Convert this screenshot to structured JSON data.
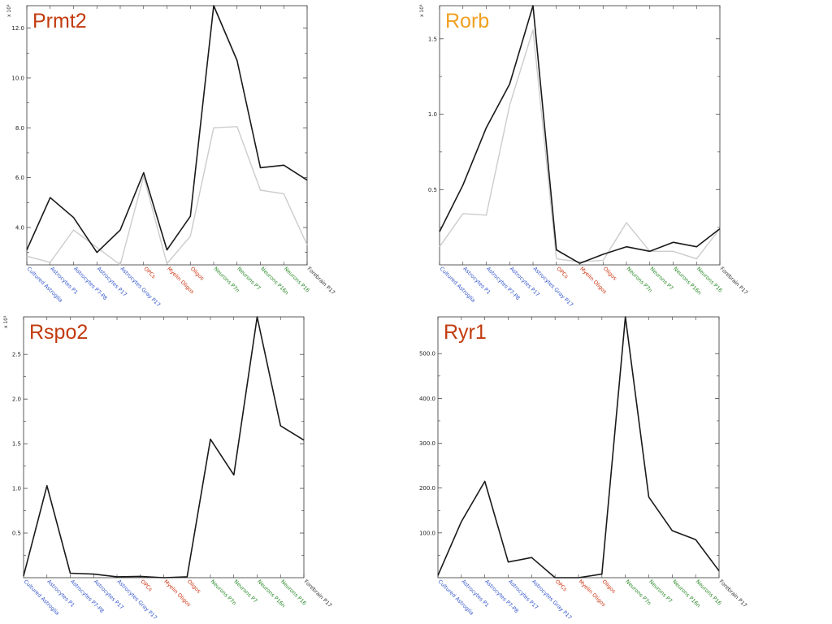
{
  "colors": {
    "astrocyte_label": "#3355cc",
    "oligo_label": "#cc3311",
    "neuron_label": "#2a8a2a",
    "forebrain_label": "#333333",
    "series_primary": "#1a1a1a",
    "series_secondary": "#cccccc",
    "title_red": "#c23b0e",
    "title_orange": "#f0a020"
  },
  "chart_data": [
    {
      "type": "line",
      "title": "Prmt2",
      "title_color": "#c23b0e",
      "multiplier": "x 10³",
      "categories": [
        {
          "label": "Cultured Astroglia",
          "group": "astro"
        },
        {
          "label": "Astrocytes P1",
          "group": "astro"
        },
        {
          "label": "Astrocytes P7-P8",
          "group": "astro"
        },
        {
          "label": "Astrocytes P17",
          "group": "astro"
        },
        {
          "label": "Astrocytes Gray P17",
          "group": "astro"
        },
        {
          "label": "OPCs",
          "group": "oligo"
        },
        {
          "label": "Myelin Oligos",
          "group": "oligo"
        },
        {
          "label": "Oligos",
          "group": "oligo"
        },
        {
          "label": "Neurons P7n",
          "group": "neuron"
        },
        {
          "label": "Neurons P7",
          "group": "neuron"
        },
        {
          "label": "Neurons P16n",
          "group": "neuron"
        },
        {
          "label": "Neurons P16",
          "group": "neuron"
        },
        {
          "label": "Forebrain P17",
          "group": "fore"
        }
      ],
      "yticks": [
        4.0,
        6.0,
        8.0,
        10.0,
        12.0
      ],
      "ytick_labels": [
        "4.0",
        "6.0",
        "8.0",
        "10.0",
        "12.0"
      ],
      "ylim": [
        2.5,
        12.9
      ],
      "series": [
        {
          "values": [
            3.1,
            5.2,
            4.4,
            3.0,
            3.9,
            6.2,
            3.1,
            4.45,
            12.9,
            10.7,
            6.4,
            6.5,
            5.9
          ],
          "color": "#1a1a1a"
        },
        {
          "values": [
            2.85,
            2.6,
            3.9,
            3.2,
            2.5,
            6.05,
            2.55,
            3.65,
            8.0,
            8.05,
            5.5,
            5.35,
            3.3
          ],
          "color": "#cccccc"
        }
      ]
    },
    {
      "type": "line",
      "title": "Rorb",
      "title_color": "#f0a020",
      "multiplier": "x 10³",
      "categories": [
        {
          "label": "Cultured Astroglia",
          "group": "astro"
        },
        {
          "label": "Astrocytes P1",
          "group": "astro"
        },
        {
          "label": "Astrocytes P7-P8",
          "group": "astro"
        },
        {
          "label": "Astrocytes P17",
          "group": "astro"
        },
        {
          "label": "Astrocytes Gray P17",
          "group": "astro"
        },
        {
          "label": "OPCs",
          "group": "oligo"
        },
        {
          "label": "Myelin Oligos",
          "group": "oligo"
        },
        {
          "label": "Oligos",
          "group": "oligo"
        },
        {
          "label": "Neurons P7n",
          "group": "neuron"
        },
        {
          "label": "Neurons P7",
          "group": "neuron"
        },
        {
          "label": "Neurons P16n",
          "group": "neuron"
        },
        {
          "label": "Neurons P16",
          "group": "neuron"
        },
        {
          "label": "Forebrain P17",
          "group": "fore"
        }
      ],
      "yticks": [
        0.5,
        1.0,
        1.5
      ],
      "ytick_labels": [
        "0.5",
        "1.0",
        "1.5"
      ],
      "ylim": [
        0.0,
        1.72
      ],
      "series": [
        {
          "values": [
            0.22,
            0.53,
            0.91,
            1.2,
            1.72,
            0.1,
            0.01,
            0.07,
            0.12,
            0.09,
            0.15,
            0.12,
            0.24
          ],
          "color": "#1a1a1a"
        },
        {
          "values": [
            0.12,
            0.34,
            0.33,
            1.06,
            1.56,
            0.04,
            0.02,
            0.03,
            0.28,
            0.09,
            0.09,
            0.04,
            0.24
          ],
          "color": "#cccccc"
        }
      ]
    },
    {
      "type": "line",
      "title": "Rspo2",
      "title_color": "#c23b0e",
      "multiplier": "x 10³",
      "categories": [
        {
          "label": "Cultured Astroglia",
          "group": "astro"
        },
        {
          "label": "Astrocytes P1",
          "group": "astro"
        },
        {
          "label": "Astrocytes P7-P8",
          "group": "astro"
        },
        {
          "label": "Astrocytes P17",
          "group": "astro"
        },
        {
          "label": "Astrocytes Gray P17",
          "group": "astro"
        },
        {
          "label": "OPCs",
          "group": "oligo"
        },
        {
          "label": "Myelin Oligos",
          "group": "oligo"
        },
        {
          "label": "Oligos",
          "group": "oligo"
        },
        {
          "label": "Neurons P7n",
          "group": "neuron"
        },
        {
          "label": "Neurons P7",
          "group": "neuron"
        },
        {
          "label": "Neurons P16n",
          "group": "neuron"
        },
        {
          "label": "Neurons P16",
          "group": "neuron"
        },
        {
          "label": "Forebrain P17",
          "group": "fore"
        }
      ],
      "yticks": [
        0.5,
        1.0,
        1.5,
        2.0,
        2.5
      ],
      "ytick_labels": [
        "0.5",
        "1.0",
        "1.5",
        "2.0",
        "2.5"
      ],
      "ylim": [
        0.0,
        2.92
      ],
      "series": [
        {
          "values": [
            0.02,
            1.03,
            0.05,
            0.04,
            0.01,
            0.015,
            0.0,
            0.01,
            1.55,
            1.15,
            2.92,
            1.7,
            1.54
          ],
          "color": "#1a1a1a"
        }
      ]
    },
    {
      "type": "line",
      "title": "Ryr1",
      "title_color": "#c23b0e",
      "multiplier": "",
      "categories": [
        {
          "label": "Cultured Astroglia",
          "group": "astro"
        },
        {
          "label": "Astrocytes P1",
          "group": "astro"
        },
        {
          "label": "Astrocytes P7-P8",
          "group": "astro"
        },
        {
          "label": "Astrocytes P17",
          "group": "astro"
        },
        {
          "label": "Astrocytes Gray P17",
          "group": "astro"
        },
        {
          "label": "OPCs",
          "group": "oligo"
        },
        {
          "label": "Myelin Oligos",
          "group": "oligo"
        },
        {
          "label": "Oligos",
          "group": "oligo"
        },
        {
          "label": "Neurons P7n",
          "group": "neuron"
        },
        {
          "label": "Neurons P7",
          "group": "neuron"
        },
        {
          "label": "Neurons P16n",
          "group": "neuron"
        },
        {
          "label": "Neurons P16",
          "group": "neuron"
        },
        {
          "label": "Forebrain P17",
          "group": "fore"
        }
      ],
      "yticks": [
        100,
        200,
        300,
        400,
        500
      ],
      "ytick_labels": [
        "100.0",
        "200.0",
        "300.0",
        "400.0",
        "500.0"
      ],
      "ylim": [
        0,
        582
      ],
      "series": [
        {
          "values": [
            5,
            125,
            215,
            35,
            45,
            0,
            0,
            8,
            582,
            180,
            105,
            85,
            15
          ],
          "color": "#1a1a1a"
        }
      ]
    }
  ]
}
